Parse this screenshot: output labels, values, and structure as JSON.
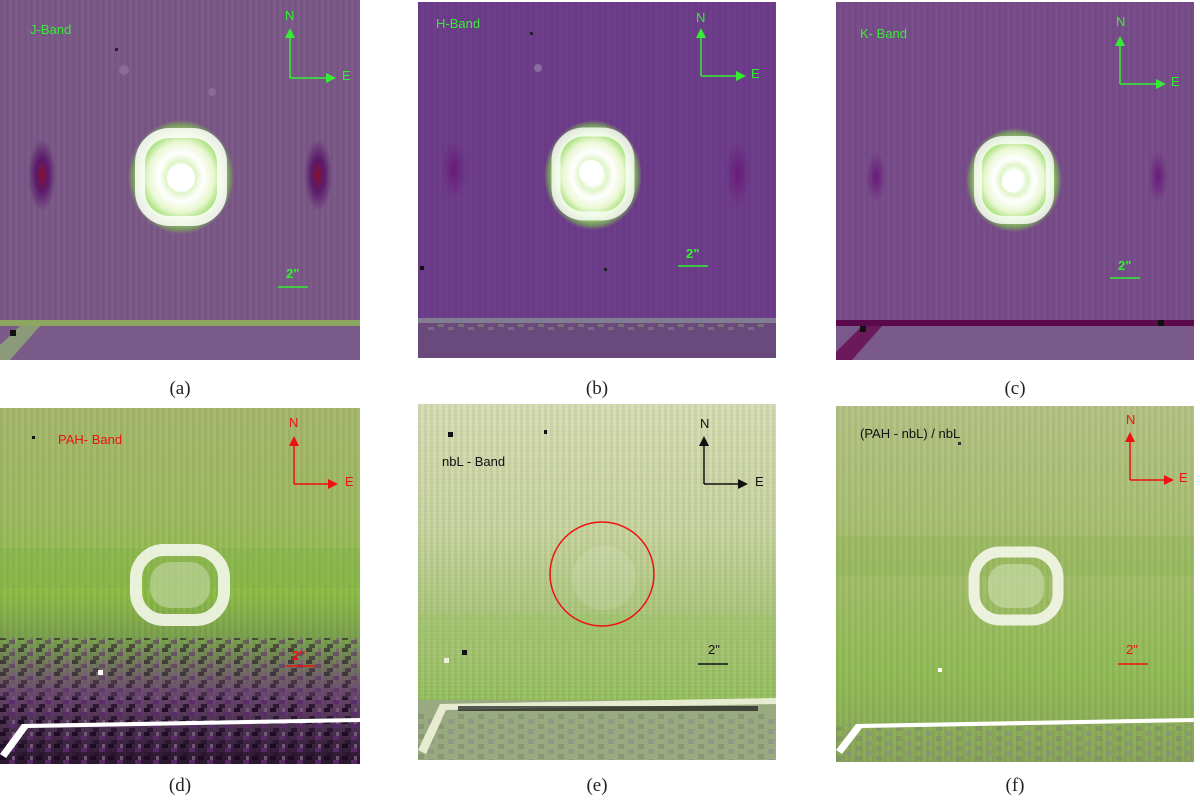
{
  "figure": {
    "colors": {
      "green_accent": "#33ee33",
      "red_accent": "#ee1111",
      "black_accent": "#111111",
      "purple_bg": "#7a4f8a",
      "deep_purple_bg": "#6e3f8c",
      "pale_green_bg": "#aebf7a"
    },
    "panels": [
      {
        "id": "a",
        "caption": "(a)",
        "band_label": "J-Band",
        "compass_north": "N",
        "compass_east": "E",
        "scale_label": "2\"",
        "accent": "green",
        "icon": "compass-arrows-icon"
      },
      {
        "id": "b",
        "caption": "(b)",
        "band_label": "H-Band",
        "compass_north": "N",
        "compass_east": "E",
        "scale_label": "2\"",
        "accent": "green",
        "icon": "compass-arrows-icon"
      },
      {
        "id": "c",
        "caption": "(c)",
        "band_label": "K- Band",
        "compass_north": "N",
        "compass_east": "E",
        "scale_label": "2\"",
        "accent": "green",
        "icon": "compass-arrows-icon"
      },
      {
        "id": "d",
        "caption": "(d)",
        "band_label": "PAH- Band",
        "compass_north": "N",
        "compass_east": "E",
        "scale_label": "2\"",
        "accent": "red",
        "icon": "compass-arrows-icon"
      },
      {
        "id": "e",
        "caption": "(e)",
        "band_label": "nbL - Band",
        "compass_north": "N",
        "compass_east": "E",
        "scale_label": "2\"",
        "accent": "black",
        "icon": "compass-arrows-icon"
      },
      {
        "id": "f",
        "caption": "(f)",
        "band_label": "(PAH - nbL) / nbL",
        "compass_north": "N",
        "compass_east": "E",
        "scale_label": "2\"",
        "accent": "red",
        "icon": "compass-arrows-icon"
      }
    ]
  }
}
